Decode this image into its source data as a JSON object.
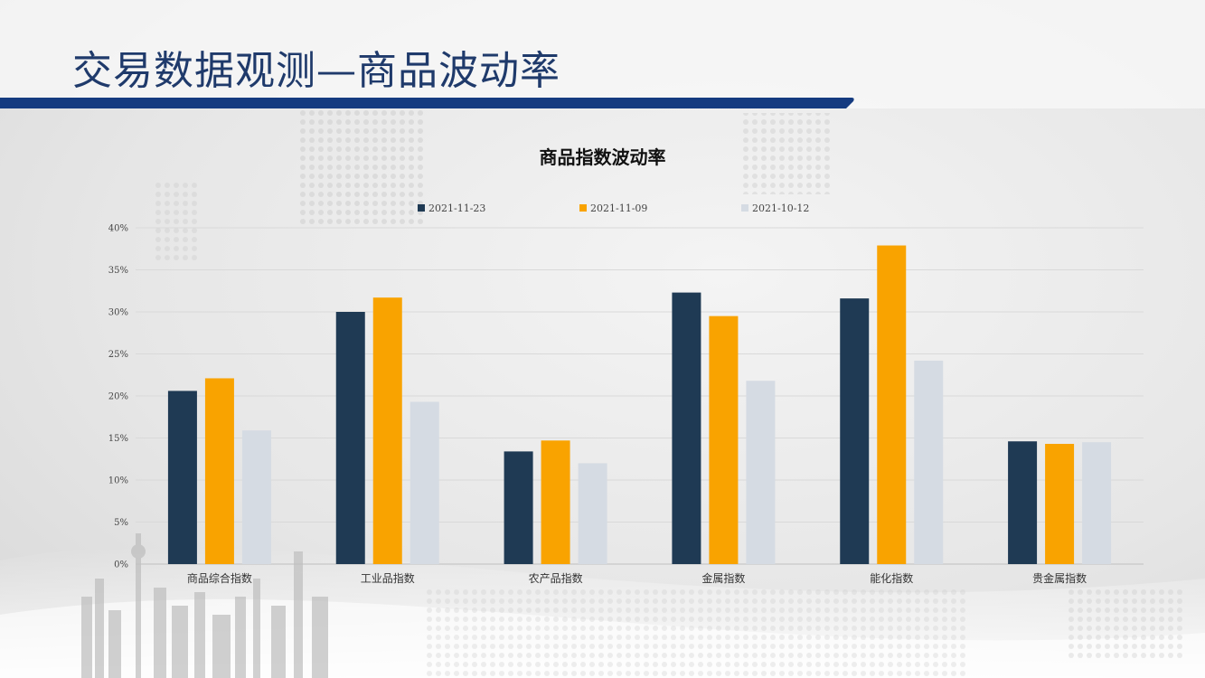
{
  "slide": {
    "title": "交易数据观测—商品波动率",
    "accent_color": "#153b80"
  },
  "chart_data": {
    "type": "bar",
    "title": "商品指数波动率",
    "categories": [
      "商品综合指数",
      "工业品指数",
      "农产品指数",
      "金属指数",
      "能化指数",
      "贵金属指数"
    ],
    "series": [
      {
        "name": "2021-11-23",
        "color": "#1f3a54",
        "values": [
          20.6,
          30.0,
          13.4,
          32.3,
          31.6,
          14.6
        ]
      },
      {
        "name": "2021-11-09",
        "color": "#f9a300",
        "values": [
          22.1,
          31.7,
          14.7,
          29.5,
          37.9,
          14.3
        ]
      },
      {
        "name": "2021-10-12",
        "color": "#d5dbe3",
        "values": [
          15.9,
          19.3,
          12.0,
          21.8,
          24.2,
          14.5
        ]
      }
    ],
    "ylim": [
      0,
      40
    ],
    "yticks": [
      0,
      5,
      10,
      15,
      20,
      25,
      30,
      35,
      40
    ],
    "ytick_format": "percent",
    "grid": true,
    "legend_position": "top"
  }
}
